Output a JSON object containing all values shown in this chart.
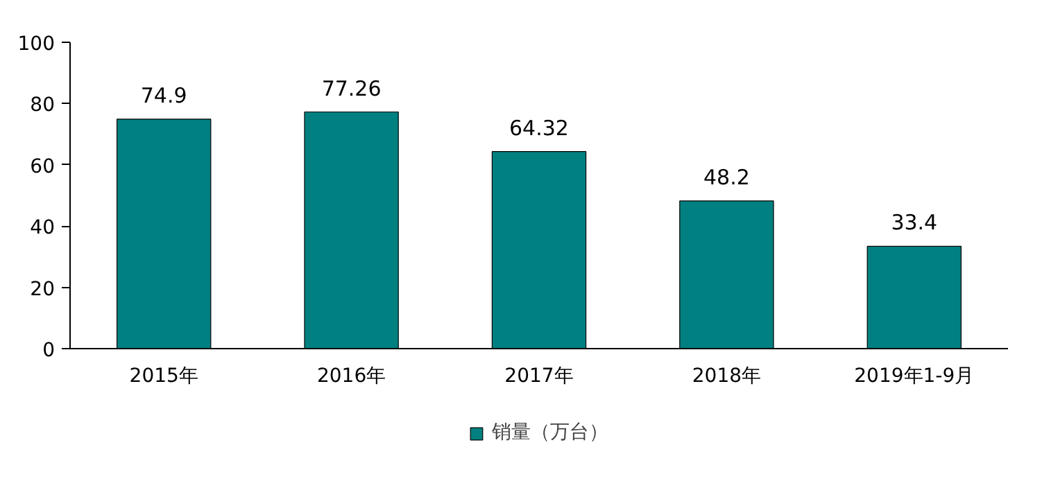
{
  "chart_data": {
    "type": "bar",
    "categories": [
      "2015年",
      "2016年",
      "2017年",
      "2018年",
      "2019年1-9月"
    ],
    "series": [
      {
        "name": "销量（万台）",
        "color": "#008080",
        "values": [
          74.9,
          77.26,
          64.32,
          48.2,
          33.4
        ]
      }
    ],
    "ylim": [
      0,
      100
    ],
    "yticks": [
      0,
      20,
      40,
      60,
      80,
      100
    ],
    "data_labels": true,
    "grid": false,
    "legend": "bottom"
  }
}
